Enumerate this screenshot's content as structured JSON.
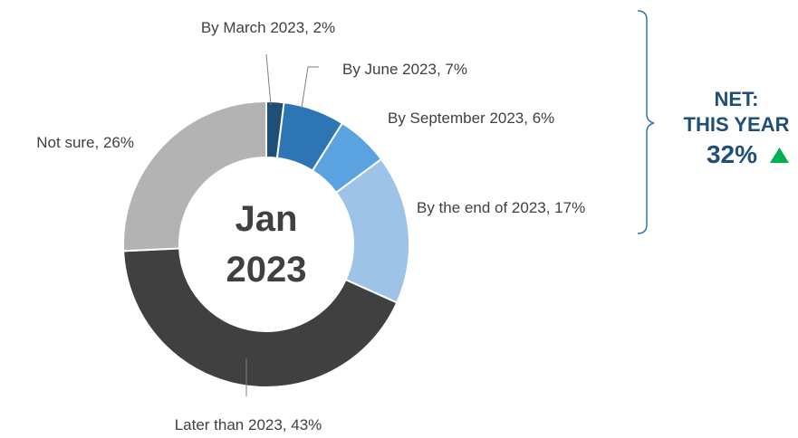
{
  "chart_data": {
    "type": "pie",
    "style": "donut",
    "center_label": [
      "Jan",
      "2023"
    ],
    "slices": [
      {
        "label": "By March 2023, 2%",
        "value": 2,
        "color": "#1f4e79"
      },
      {
        "label": "By June 2023, 7%",
        "value": 7,
        "color": "#2e75b6"
      },
      {
        "label": "By September 2023, 6%",
        "value": 6,
        "color": "#5ba3e0"
      },
      {
        "label": "By the end of 2023, 17%",
        "value": 17,
        "color": "#9dc3e6"
      },
      {
        "label": "Later than 2023, 43%",
        "value": 43,
        "color": "#404040"
      },
      {
        "label": "Not sure, 26%",
        "value": 26,
        "color": "#b3b3b3"
      }
    ]
  },
  "net": {
    "line1": "NET:",
    "line2": "THIS YEAR",
    "value": "32%",
    "trend_icon": "up-triangle-icon",
    "trend_color": "#00b050",
    "text_color": "#1f4e79"
  }
}
